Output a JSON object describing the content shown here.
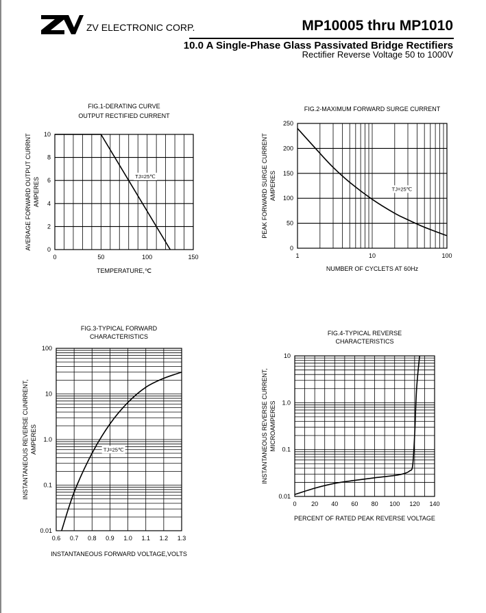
{
  "header": {
    "logo_text": "ZV",
    "company": "ZV ELECTRONIC CORP.",
    "part_range": "MP10005 thru MP1010",
    "title": "10.0  A Single-Phase Glass Passivated Bridge Rectifiers",
    "subtitle": "Rectifier Reverse Voltage 50 to 1000V"
  },
  "chart_data": [
    {
      "id": "fig1",
      "type": "line",
      "title": "FIG.1-DERATING CURVE",
      "subtitle": "OUTPUT RECTIFIED CURRENT",
      "xlabel": "TEMPERATURE,℃",
      "ylabel": "AVERAGE  FORWARD OUTPUT CURRNT",
      "ylabel2": "AMPERES",
      "xscale": "linear",
      "yscale": "linear",
      "xlim": [
        0,
        150
      ],
      "ylim": [
        0,
        10
      ],
      "xticks": [
        0,
        50,
        100,
        150
      ],
      "xtick_labels": [
        "0",
        "50",
        "100",
        "150"
      ],
      "yticks": [
        0,
        2,
        4,
        6,
        8,
        10
      ],
      "ytick_labels": [
        "0",
        "2",
        "4",
        "6",
        "8",
        "10"
      ],
      "xgrid": [
        0,
        10,
        20,
        30,
        40,
        50,
        60,
        70,
        80,
        90,
        100,
        110,
        120,
        130,
        140,
        150
      ],
      "ygrid": [
        0,
        2,
        4,
        6,
        8,
        10
      ],
      "annotation": "TJ=25℃",
      "annotation_at": [
        98,
        6.2
      ],
      "series": [
        {
          "name": "derating",
          "x": [
            0,
            50,
            125
          ],
          "y": [
            10,
            10,
            0
          ]
        }
      ]
    },
    {
      "id": "fig2",
      "type": "line",
      "title": "FIG.2-MAXIMUM FORWARD SURGE CURRENT",
      "subtitle": "",
      "xlabel": "NUMBER OF CYCLETS AT 60Hz",
      "ylabel": "PEAK FORWARD SURGE CURRENT",
      "ylabel2": "AMPERES",
      "xscale": "log",
      "yscale": "linear",
      "xlim": [
        1,
        100
      ],
      "ylim": [
        0,
        250
      ],
      "xticks": [
        1,
        10,
        100
      ],
      "xtick_labels": [
        "1",
        "10",
        "100"
      ],
      "yticks": [
        0,
        50,
        100,
        150,
        200,
        250
      ],
      "ytick_labels": [
        "0",
        "50",
        "100",
        "150",
        "200",
        "250"
      ],
      "xgrid": [
        1,
        2,
        3,
        4,
        5,
        6,
        7,
        8,
        9,
        10,
        20,
        30,
        40,
        50,
        60,
        70,
        80,
        90,
        100
      ],
      "ygrid": [
        0,
        50,
        100,
        150,
        200,
        250
      ],
      "annotation": "TJ=25℃",
      "annotation_at": [
        25,
        115
      ],
      "series": [
        {
          "name": "surge",
          "x": [
            1,
            2,
            3,
            5,
            10,
            20,
            30,
            50,
            100
          ],
          "y": [
            240,
            190,
            162,
            132,
            98,
            70,
            57,
            42,
            25
          ]
        }
      ]
    },
    {
      "id": "fig3",
      "type": "line",
      "title": "FIG.3-TYPICAL FORWARD",
      "subtitle": "CHARACTERISTICS",
      "xlabel": "INSTANTANEOUS FORWARD VOLTAGE,VOLTS",
      "ylabel": "INSTANTANEOUS REVERSE CUNRRENT,",
      "ylabel2": "AMPERES",
      "xscale": "linear",
      "yscale": "log",
      "xlim": [
        0.6,
        1.3
      ],
      "ylim": [
        0.01,
        100
      ],
      "xticks": [
        0.6,
        0.7,
        0.8,
        0.9,
        1.0,
        1.1,
        1.2,
        1.3
      ],
      "xtick_labels": [
        "0.6",
        "0.7",
        "0.8",
        "0.9",
        "1.0",
        "1.1",
        "1.2",
        "1.3"
      ],
      "yticks": [
        0.01,
        0.1,
        1,
        10,
        100
      ],
      "ytick_labels": [
        "0.01",
        "0.1",
        "1.0",
        "10",
        "100"
      ],
      "xgrid": [
        0.6,
        0.7,
        0.8,
        0.9,
        1.0,
        1.1,
        1.2,
        1.3
      ],
      "ygrid": "log",
      "annotation": "TJ=25℃",
      "annotation_at": [
        0.92,
        0.55
      ],
      "series": [
        {
          "name": "forward",
          "x": [
            0.63,
            0.7,
            0.8,
            0.9,
            1.0,
            1.1,
            1.2,
            1.3
          ],
          "y": [
            0.01,
            0.07,
            0.5,
            2.2,
            6.5,
            14,
            22,
            30
          ]
        }
      ]
    },
    {
      "id": "fig4",
      "type": "line",
      "title": "FIG.4-TYPICAL REVERSE",
      "subtitle": "CHARACTERISTICS",
      "xlabel": "PERCENT OF RATED PEAK REVERSE VOLTAGE",
      "ylabel": "INSTANTANEOUS REVERSE CURRENT,",
      "ylabel2": "MICROAMPERES",
      "xscale": "linear",
      "yscale": "log",
      "xlim": [
        0,
        140
      ],
      "ylim": [
        0.01,
        10
      ],
      "xticks": [
        0,
        20,
        40,
        60,
        80,
        100,
        120,
        140
      ],
      "xtick_labels": [
        "0",
        "20",
        "40",
        "60",
        "80",
        "100",
        "120",
        "140"
      ],
      "yticks": [
        0.01,
        0.1,
        1,
        10
      ],
      "ytick_labels": [
        "0.01",
        "0.1",
        "1.0",
        "10"
      ],
      "xgrid": [
        0,
        10,
        20,
        30,
        40,
        50,
        60,
        70,
        80,
        90,
        100,
        110,
        120,
        130,
        140
      ],
      "ygrid": "log",
      "annotation": "",
      "annotation_at": [
        0,
        0
      ],
      "series": [
        {
          "name": "reverse",
          "x": [
            0,
            20,
            40,
            60,
            80,
            100,
            110,
            115,
            118,
            120,
            122,
            125
          ],
          "y": [
            0.011,
            0.015,
            0.019,
            0.022,
            0.025,
            0.028,
            0.031,
            0.035,
            0.045,
            0.2,
            2,
            10
          ]
        }
      ]
    }
  ]
}
